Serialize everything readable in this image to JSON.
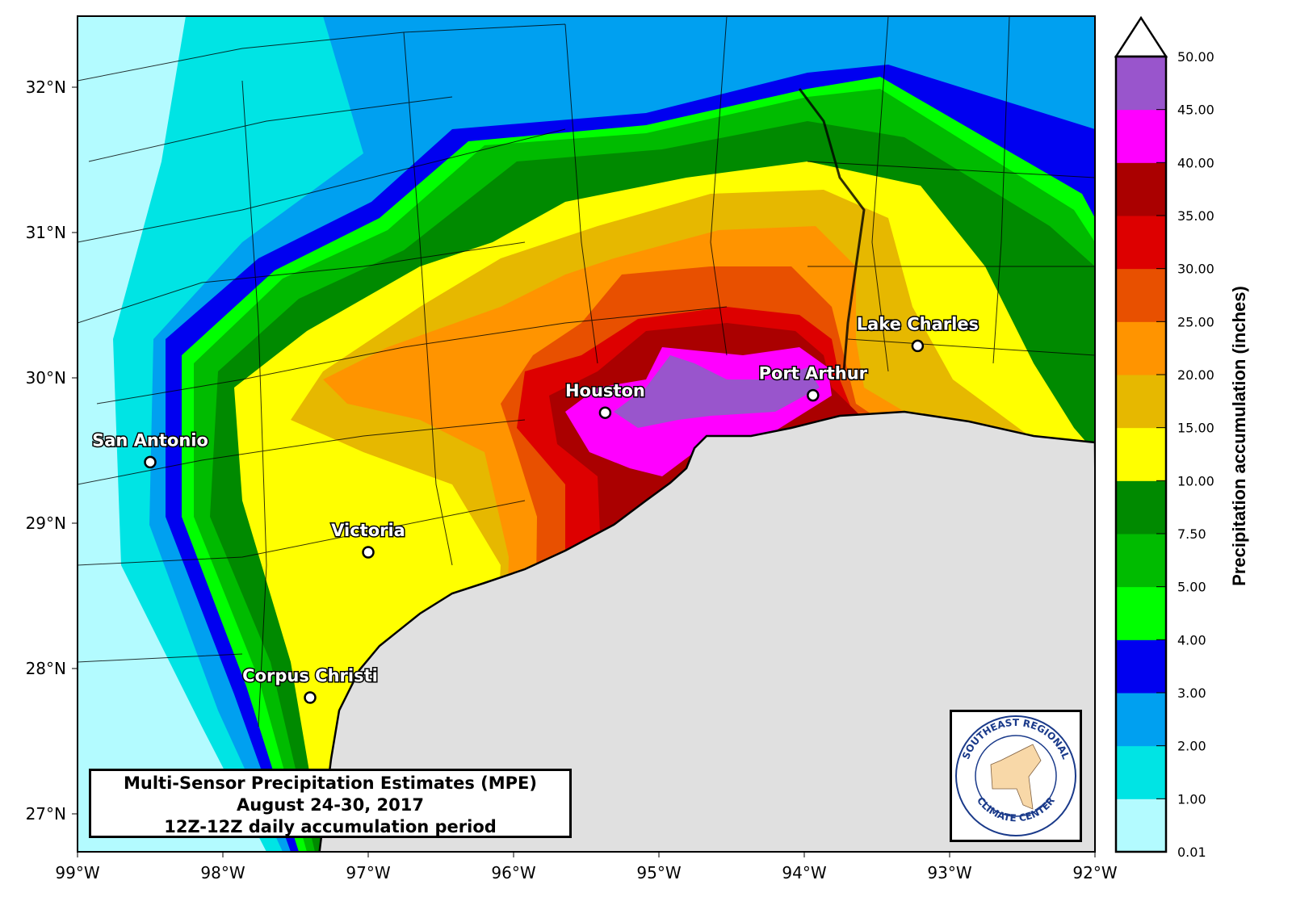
{
  "title": {
    "line1": "Multi-Sensor Precipitation Estimates (MPE)",
    "line2": "August 24-30, 2017",
    "line3": "12Z-12Z daily accumulation period"
  },
  "axes": {
    "lon_ticks": [
      "99°W",
      "98°W",
      "97°W",
      "96°W",
      "95°W",
      "94°W",
      "93°W",
      "92°W"
    ],
    "lat_ticks": [
      "32°N",
      "31°N",
      "30°N",
      "29°N",
      "28°N",
      "27°N"
    ]
  },
  "cities": [
    {
      "name": "San Antonio",
      "lon": -98.5,
      "lat": 29.42
    },
    {
      "name": "Victoria",
      "lon": -97.0,
      "lat": 28.8
    },
    {
      "name": "Corpus Christi",
      "lon": -97.4,
      "lat": 27.8
    },
    {
      "name": "Houston",
      "lon": -95.37,
      "lat": 29.76
    },
    {
      "name": "Port Arthur",
      "lon": -93.94,
      "lat": 29.88
    },
    {
      "name": "Lake Charles",
      "lon": -93.22,
      "lat": 30.22
    }
  ],
  "colorbar": {
    "label": "Precipitation accumulation (inches)",
    "ticks": [
      "0.01",
      "1.00",
      "2.00",
      "3.00",
      "4.00",
      "5.00",
      "7.50",
      "10.00",
      "15.00",
      "20.00",
      "25.00",
      "30.00",
      "35.00",
      "40.00",
      "45.00",
      "50.00"
    ],
    "colors": [
      "#b3fbff",
      "#00e4e4",
      "#00a0f0",
      "#0000f0",
      "#00ff00",
      "#00bb00",
      "#008a00",
      "#ffff00",
      "#e6b800",
      "#ff9400",
      "#e85000",
      "#dd0000",
      "#aa0000",
      "#ff00ff",
      "#9955cc"
    ],
    "extend": "max"
  },
  "logo": {
    "top_text": "SOUTHEAST REGIONAL",
    "bottom_text": "CLIMATE CENTER"
  },
  "land_color_gulf": "#e0e0e0"
}
